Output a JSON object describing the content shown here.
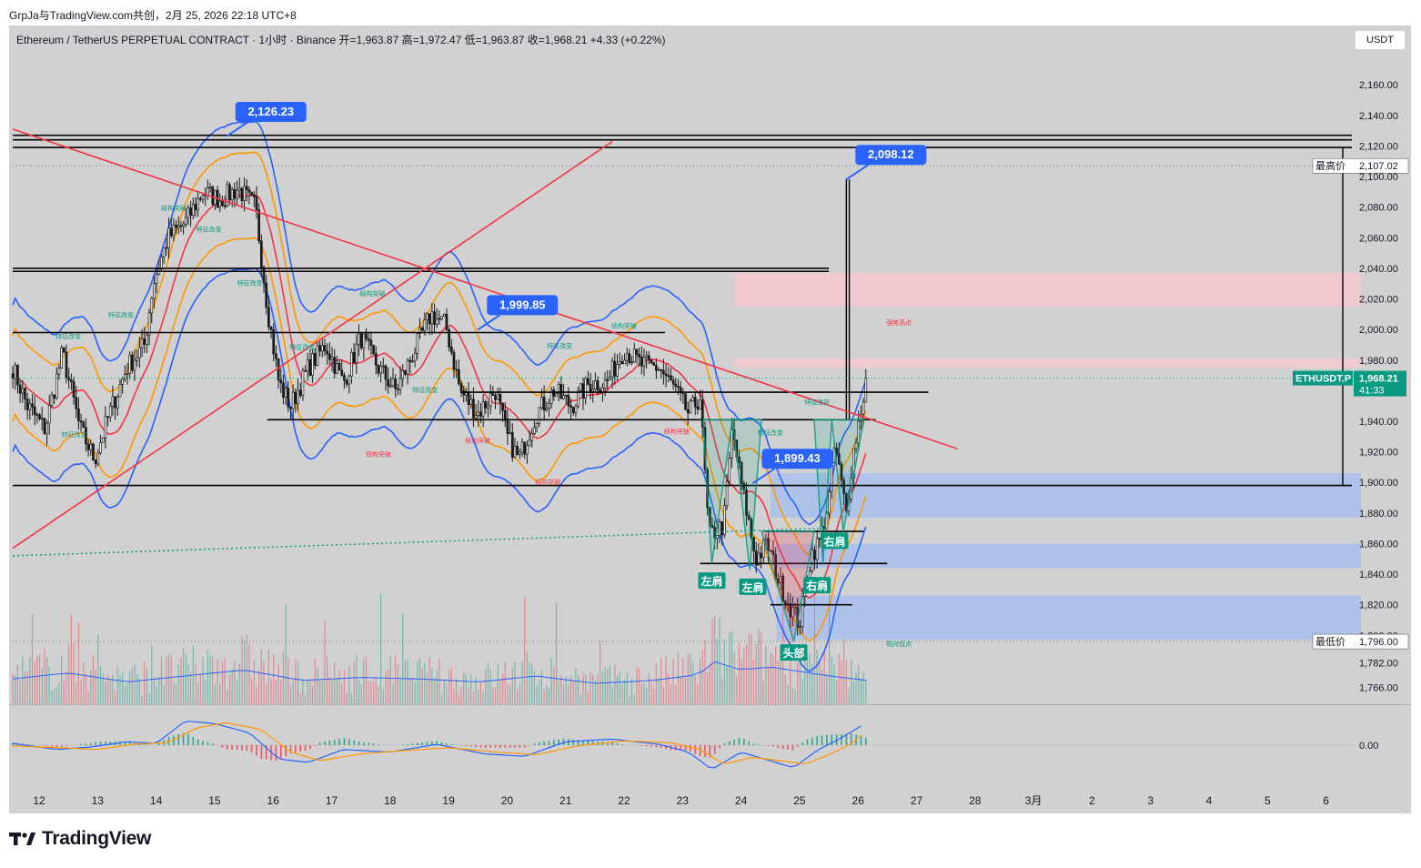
{
  "header": {
    "text": "GrpJa与TradingView.com共创，2月 25, 2026 22:18 UTC+8"
  },
  "symbol_line": "Ethereum / TetherUS PERPETUAL CONTRACT · 1小时 · Binance  开=1,963.87  高=1,972.47  低=1,963.87  收=1,968.21  +4.33 (+0.22%)",
  "currency_button": "USDT",
  "brand": "TradingView",
  "colors": {
    "chart_bg": "#d1d1d1",
    "bull": "#089981",
    "bear": "#f23645",
    "candle": "#1a1a1a",
    "band_blue": "#2962ff",
    "band_orange": "#ff9800",
    "band_red": "#f23645",
    "label_blue": "#2962ff",
    "label_green": "#089981",
    "supply_zone": "#f7c9d0",
    "demand_zone": "#a9c1ef"
  },
  "chart_data": {
    "type": "candlestick",
    "symbol": "ETHUSDT.P",
    "timeframe": "1小时",
    "ylim": [
      1755,
      2172
    ],
    "y_ticks": [
      2160,
      2140,
      2120,
      2100,
      2080,
      2060,
      2040,
      2020,
      2000,
      1980,
      1960,
      1940,
      1920,
      1900,
      1880,
      1860,
      1840,
      1820,
      1800,
      1782,
      1766
    ],
    "y_tick_labels": [
      "2,160.00",
      "2,140.00",
      "2,120.00",
      "2,100.00",
      "2,080.00",
      "2,060.00",
      "2,040.00",
      "2,020.00",
      "2,000.00",
      "1,980.00",
      "1,960.00",
      "1,940.00",
      "1,920.00",
      "1,900.00",
      "1,880.00",
      "1,860.00",
      "1,840.00",
      "1,820.00",
      "1,800.00",
      "1,782.00",
      "1,766.00"
    ],
    "x_ticks": [
      {
        "label": "12",
        "day": 12
      },
      {
        "label": "13",
        "day": 13
      },
      {
        "label": "14",
        "day": 14
      },
      {
        "label": "15",
        "day": 15
      },
      {
        "label": "16",
        "day": 16
      },
      {
        "label": "17",
        "day": 17
      },
      {
        "label": "18",
        "day": 18
      },
      {
        "label": "19",
        "day": 19
      },
      {
        "label": "20",
        "day": 20
      },
      {
        "label": "21",
        "day": 21
      },
      {
        "label": "22",
        "day": 22
      },
      {
        "label": "23",
        "day": 23
      },
      {
        "label": "24",
        "day": 24
      },
      {
        "label": "25",
        "day": 25
      },
      {
        "label": "26",
        "day": 26
      },
      {
        "label": "27",
        "day": 27
      },
      {
        "label": "28",
        "day": 28
      },
      {
        "label": "3月",
        "day": 29
      },
      {
        "label": "2",
        "day": 30
      },
      {
        "label": "3",
        "day": 31
      },
      {
        "label": "4",
        "day": 32
      },
      {
        "label": "5",
        "day": 33
      },
      {
        "label": "6",
        "day": 34
      }
    ],
    "last_price": {
      "label": "ETHUSDT.P",
      "value": "1,968.21",
      "countdown": "41:33",
      "price": 1968.21
    },
    "high_marker": {
      "label": "最高价",
      "value": "2,107.02",
      "price": 2107.02
    },
    "low_marker": {
      "label": "最低价",
      "value": "1,796.00",
      "price": 1796.0
    },
    "callouts": [
      {
        "text": "2,126.23",
        "day": 15.2,
        "price": 2126.23
      },
      {
        "text": "2,098.12",
        "day": 25.8,
        "price": 2098.12
      },
      {
        "text": "1,999.85",
        "day": 19.5,
        "price": 1999.85
      },
      {
        "text": "1,899.43",
        "day": 24.2,
        "price": 1899.43
      }
    ],
    "pattern_labels": [
      {
        "text": "左肩",
        "day": 23.5,
        "price": 1840
      },
      {
        "text": "左肩",
        "day": 24.2,
        "price": 1836
      },
      {
        "text": "右肩",
        "day": 25.3,
        "price": 1837
      },
      {
        "text": "右肩",
        "day": 25.6,
        "price": 1866
      },
      {
        "text": "头部",
        "day": 24.9,
        "price": 1793
      }
    ],
    "small_annotations": [
      {
        "text": "结构突破",
        "day": 14.3,
        "price": 2078
      },
      {
        "text": "特征改变",
        "day": 14.9,
        "price": 2064
      },
      {
        "text": "特征改变",
        "day": 15.6,
        "price": 2029
      },
      {
        "text": "特征改变",
        "day": 13.4,
        "price": 2008
      },
      {
        "text": "特征改变",
        "day": 12.5,
        "price": 1994
      },
      {
        "text": "特征改变",
        "day": 12.6,
        "price": 1930
      },
      {
        "text": "特征改变",
        "day": 16.5,
        "price": 1987
      },
      {
        "text": "结构突破",
        "day": 17.7,
        "price": 2022
      },
      {
        "text": "特征改变",
        "day": 18.6,
        "price": 1959
      },
      {
        "text": "结构突破",
        "day": 17.8,
        "price": 1917
      },
      {
        "text": "结构突破",
        "day": 19.5,
        "price": 1926
      },
      {
        "text": "特征改变",
        "day": 20.9,
        "price": 1988
      },
      {
        "text": "结构突破",
        "day": 20.7,
        "price": 1899
      },
      {
        "text": "结构突破",
        "day": 22.0,
        "price": 2001
      },
      {
        "text": "结构突破",
        "day": 22.9,
        "price": 1932
      },
      {
        "text": "特征改变",
        "day": 24.5,
        "price": 1931
      },
      {
        "text": "特征改变",
        "day": 25.3,
        "price": 1951
      },
      {
        "text": "强势高点",
        "day": 26.7,
        "price": 2003
      },
      {
        "text": "相对低点",
        "day": 26.7,
        "price": 1793
      }
    ],
    "supply_zones": [
      {
        "from_day": 23.9,
        "to_day": 35.0,
        "low": 2015,
        "high": 2037
      },
      {
        "from_day": 23.9,
        "to_day": 35.0,
        "low": 1975,
        "high": 1981
      }
    ],
    "demand_zones": [
      {
        "from_day": 24.5,
        "to_day": 35.0,
        "low": 1877,
        "high": 1906
      },
      {
        "from_day": 24.6,
        "to_day": 35.0,
        "low": 1844,
        "high": 1860
      },
      {
        "from_day": 24.6,
        "to_day": 35.0,
        "low": 1797,
        "high": 1826
      }
    ],
    "horizontal_lines": [
      {
        "price": 2127,
        "from_day": 11.55,
        "to_day": 34.7
      },
      {
        "price": 2124,
        "from_day": 11.55,
        "to_day": 34.7
      },
      {
        "price": 2119,
        "from_day": 11.55,
        "to_day": 34.7
      },
      {
        "price": 2040,
        "from_day": 11.55,
        "to_day": 25.5
      },
      {
        "price": 2038,
        "from_day": 11.55,
        "to_day": 25.5
      },
      {
        "price": 1998,
        "from_day": 11.55,
        "to_day": 22.7
      },
      {
        "price": 1959,
        "from_day": 19.2,
        "to_day": 27.2
      },
      {
        "price": 1941,
        "from_day": 15.9,
        "to_day": 26.3
      },
      {
        "price": 1898,
        "from_day": 11.55,
        "to_day": 34.7
      },
      {
        "price": 1868,
        "from_day": 24.4,
        "to_day": 26.1
      },
      {
        "price": 1847,
        "from_day": 23.3,
        "to_day": 26.5
      },
      {
        "price": 1820,
        "from_day": 24.5,
        "to_day": 25.9
      }
    ],
    "trend_lines": [
      {
        "from": [
          11.55,
          2131
        ],
        "to": [
          27.7,
          1922
        ],
        "color": "#f23645"
      },
      {
        "from": [
          11.55,
          1857
        ],
        "to": [
          21.8,
          2123
        ],
        "color": "#f23645"
      }
    ],
    "close_series_anchors": [
      [
        11.55,
        1975
      ],
      [
        11.8,
        1950
      ],
      [
        12.1,
        1935
      ],
      [
        12.4,
        1985
      ],
      [
        12.7,
        1935
      ],
      [
        12.95,
        1915
      ],
      [
        13.2,
        1945
      ],
      [
        13.5,
        1975
      ],
      [
        13.8,
        1990
      ],
      [
        13.95,
        2030
      ],
      [
        14.2,
        2060
      ],
      [
        14.5,
        2070
      ],
      [
        14.8,
        2090
      ],
      [
        15.1,
        2085
      ],
      [
        15.4,
        2092
      ],
      [
        15.7,
        2080
      ],
      [
        15.9,
        2015
      ],
      [
        16.1,
        1965
      ],
      [
        16.3,
        1950
      ],
      [
        16.6,
        1975
      ],
      [
        16.9,
        1990
      ],
      [
        17.2,
        1965
      ],
      [
        17.5,
        1995
      ],
      [
        17.8,
        1975
      ],
      [
        18.1,
        1960
      ],
      [
        18.4,
        1985
      ],
      [
        18.7,
        2010
      ],
      [
        18.95,
        2003
      ],
      [
        19.2,
        1960
      ],
      [
        19.5,
        1945
      ],
      [
        19.8,
        1960
      ],
      [
        20.0,
        1930
      ],
      [
        20.2,
        1915
      ],
      [
        20.5,
        1945
      ],
      [
        20.8,
        1960
      ],
      [
        21.1,
        1950
      ],
      [
        21.4,
        1965
      ],
      [
        21.7,
        1965
      ],
      [
        22.0,
        1987
      ],
      [
        22.3,
        1977
      ],
      [
        22.6,
        1975
      ],
      [
        22.85,
        1962
      ],
      [
        23.1,
        1945
      ],
      [
        23.3,
        1956
      ],
      [
        23.45,
        1865
      ],
      [
        23.7,
        1872
      ],
      [
        23.85,
        1935
      ],
      [
        24.0,
        1900
      ],
      [
        24.25,
        1850
      ],
      [
        24.45,
        1860
      ],
      [
        24.65,
        1835
      ],
      [
        24.85,
        1818
      ],
      [
        25.0,
        1808
      ],
      [
        25.2,
        1853
      ],
      [
        25.35,
        1862
      ],
      [
        25.5,
        1888
      ],
      [
        25.6,
        1925
      ],
      [
        25.8,
        1880
      ],
      [
        25.9,
        1915
      ],
      [
        26.05,
        1948
      ],
      [
        26.15,
        1968.21
      ]
    ],
    "volume_series_anchors": [
      [
        11.55,
        60
      ],
      [
        12.5,
        80
      ],
      [
        13.5,
        50
      ],
      [
        14.5,
        70
      ],
      [
        15.5,
        90
      ],
      [
        16.5,
        55
      ],
      [
        17.5,
        65
      ],
      [
        18.5,
        60
      ],
      [
        19.5,
        50
      ],
      [
        20.5,
        70
      ],
      [
        21.5,
        45
      ],
      [
        22.5,
        55
      ],
      [
        23.3,
        75
      ],
      [
        23.5,
        120
      ],
      [
        24.0,
        90
      ],
      [
        24.5,
        100
      ],
      [
        25.0,
        85
      ],
      [
        25.5,
        70
      ],
      [
        26.15,
        55
      ]
    ],
    "oscillator": {
      "zero_label": "0.00",
      "line1_anchors": [
        [
          11.55,
          0.2
        ],
        [
          12.3,
          -0.5
        ],
        [
          12.9,
          -0.2
        ],
        [
          13.5,
          0.4
        ],
        [
          14.0,
          0.2
        ],
        [
          14.5,
          2.8
        ],
        [
          15.0,
          2.5
        ],
        [
          15.6,
          1.4
        ],
        [
          16.1,
          -1.6
        ],
        [
          16.6,
          -2.0
        ],
        [
          17.2,
          -0.5
        ],
        [
          18.0,
          -0.8
        ],
        [
          18.8,
          0.1
        ],
        [
          19.6,
          -1.0
        ],
        [
          20.3,
          -1.3
        ],
        [
          21.0,
          0.4
        ],
        [
          21.8,
          0.7
        ],
        [
          22.6,
          0.1
        ],
        [
          23.1,
          -0.8
        ],
        [
          23.5,
          -2.8
        ],
        [
          24.0,
          -0.8
        ],
        [
          24.6,
          -2.0
        ],
        [
          24.9,
          -2.6
        ],
        [
          25.3,
          -0.6
        ],
        [
          25.7,
          0.8
        ],
        [
          26.15,
          2.6
        ]
      ],
      "line2_anchors": [
        [
          11.55,
          -0.1
        ],
        [
          12.4,
          -0.3
        ],
        [
          13.0,
          -0.5
        ],
        [
          13.6,
          0.1
        ],
        [
          14.2,
          0.3
        ],
        [
          14.7,
          2.0
        ],
        [
          15.2,
          2.6
        ],
        [
          15.8,
          1.8
        ],
        [
          16.3,
          -0.8
        ],
        [
          16.8,
          -1.8
        ],
        [
          17.5,
          -1.0
        ],
        [
          18.3,
          -0.6
        ],
        [
          19.0,
          -0.3
        ],
        [
          19.8,
          -0.8
        ],
        [
          20.5,
          -1.1
        ],
        [
          21.2,
          -0.1
        ],
        [
          22.0,
          0.5
        ],
        [
          22.8,
          0.3
        ],
        [
          23.3,
          -0.5
        ],
        [
          23.7,
          -2.2
        ],
        [
          24.2,
          -1.4
        ],
        [
          24.8,
          -1.9
        ],
        [
          25.1,
          -2.2
        ],
        [
          25.5,
          -1.1
        ],
        [
          25.9,
          0.2
        ],
        [
          26.15,
          1.8
        ]
      ]
    }
  }
}
